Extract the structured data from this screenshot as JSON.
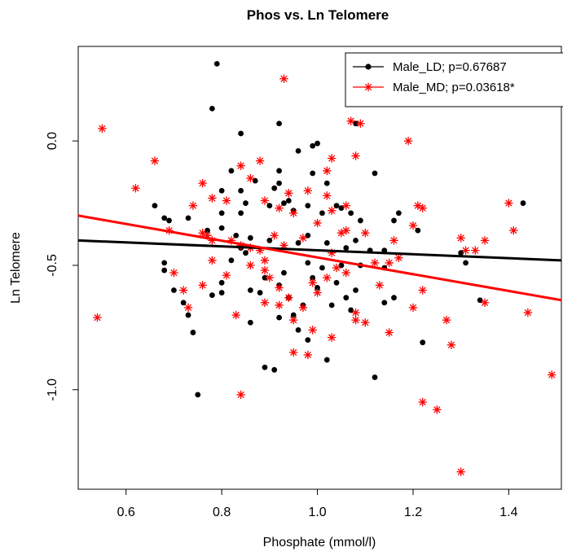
{
  "chart_data": {
    "type": "scatter",
    "title": "Phos vs. Ln Telomere",
    "xlabel": "Phosphate (mmol/l)",
    "ylabel": "Ln Telomere",
    "xlim": [
      0.5,
      1.51
    ],
    "ylim": [
      -1.4,
      0.38
    ],
    "x_ticks": [
      0.6,
      0.8,
      1.0,
      1.2,
      1.4
    ],
    "x_tick_labels": [
      "0.6",
      "0.8",
      "1.0",
      "1.2",
      "1.4"
    ],
    "y_ticks": [
      0.0,
      -0.5,
      -1.0
    ],
    "y_tick_labels": [
      "0.0",
      "-0.5",
      "-1.0"
    ],
    "legend_position": "top-right",
    "series": [
      {
        "name": "Male_LD; p=0.67687",
        "color": "#000000",
        "marker": "dot",
        "regression": {
          "x": [
            0.5,
            1.51
          ],
          "y": [
            -0.4,
            -0.48
          ]
        },
        "points": [
          [
            0.79,
            0.31
          ],
          [
            0.78,
            0.13
          ],
          [
            0.84,
            0.03
          ],
          [
            0.92,
            0.07
          ],
          [
            1.08,
            0.07
          ],
          [
            0.96,
            -0.04
          ],
          [
            0.99,
            -0.02
          ],
          [
            1.0,
            -0.01
          ],
          [
            0.82,
            -0.12
          ],
          [
            0.92,
            -0.12
          ],
          [
            0.91,
            -0.19
          ],
          [
            0.92,
            -0.17
          ],
          [
            0.87,
            -0.16
          ],
          [
            0.99,
            -0.13
          ],
          [
            1.02,
            -0.17
          ],
          [
            0.66,
            -0.26
          ],
          [
            0.68,
            -0.31
          ],
          [
            0.69,
            -0.32
          ],
          [
            0.73,
            -0.31
          ],
          [
            0.8,
            -0.29
          ],
          [
            0.8,
            -0.2
          ],
          [
            0.84,
            -0.2
          ],
          [
            0.85,
            -0.25
          ],
          [
            0.84,
            -0.29
          ],
          [
            0.9,
            -0.26
          ],
          [
            0.93,
            -0.25
          ],
          [
            0.94,
            -0.24
          ],
          [
            0.95,
            -0.28
          ],
          [
            0.98,
            -0.26
          ],
          [
            1.01,
            -0.29
          ],
          [
            1.04,
            -0.26
          ],
          [
            1.05,
            -0.27
          ],
          [
            1.07,
            -0.29
          ],
          [
            1.09,
            -0.32
          ],
          [
            1.16,
            -0.32
          ],
          [
            1.17,
            -0.29
          ],
          [
            1.21,
            -0.36
          ],
          [
            1.43,
            -0.25
          ],
          [
            0.77,
            -0.36
          ],
          [
            0.8,
            -0.35
          ],
          [
            0.83,
            -0.38
          ],
          [
            0.86,
            -0.39
          ],
          [
            0.9,
            -0.4
          ],
          [
            0.96,
            -0.41
          ],
          [
            0.98,
            -0.38
          ],
          [
            1.02,
            -0.41
          ],
          [
            1.06,
            -0.43
          ],
          [
            1.08,
            -0.4
          ],
          [
            1.11,
            -0.44
          ],
          [
            1.14,
            -0.44
          ],
          [
            0.68,
            -0.49
          ],
          [
            0.68,
            -0.52
          ],
          [
            0.7,
            -0.6
          ],
          [
            0.72,
            -0.65
          ],
          [
            0.73,
            -0.7
          ],
          [
            0.74,
            -0.77
          ],
          [
            0.75,
            -1.02
          ],
          [
            0.78,
            -0.62
          ],
          [
            0.8,
            -0.61
          ],
          [
            0.8,
            -0.57
          ],
          [
            0.82,
            -0.48
          ],
          [
            0.84,
            -0.43
          ],
          [
            0.85,
            -0.45
          ],
          [
            0.86,
            -0.6
          ],
          [
            0.86,
            -0.73
          ],
          [
            0.88,
            -0.61
          ],
          [
            0.89,
            -0.55
          ],
          [
            0.89,
            -0.91
          ],
          [
            0.91,
            -0.92
          ],
          [
            0.92,
            -0.58
          ],
          [
            0.92,
            -0.71
          ],
          [
            0.93,
            -0.53
          ],
          [
            0.94,
            -0.63
          ],
          [
            0.95,
            -0.7
          ],
          [
            0.96,
            -0.76
          ],
          [
            0.97,
            -0.66
          ],
          [
            0.98,
            -0.8
          ],
          [
            0.98,
            -0.49
          ],
          [
            0.99,
            -0.55
          ],
          [
            1.0,
            -0.59
          ],
          [
            1.01,
            -0.51
          ],
          [
            1.02,
            -0.88
          ],
          [
            1.03,
            -0.66
          ],
          [
            1.04,
            -0.57
          ],
          [
            1.05,
            -0.5
          ],
          [
            1.06,
            -0.63
          ],
          [
            1.07,
            -0.68
          ],
          [
            1.08,
            -0.6
          ],
          [
            1.09,
            -0.5
          ],
          [
            1.12,
            -0.95
          ],
          [
            1.12,
            -0.13
          ],
          [
            1.14,
            -0.51
          ],
          [
            1.14,
            -0.65
          ],
          [
            1.16,
            -0.63
          ],
          [
            1.22,
            -0.81
          ],
          [
            1.3,
            -0.45
          ],
          [
            1.31,
            -0.49
          ],
          [
            1.34,
            -0.64
          ]
        ]
      },
      {
        "name": "Male_MD; p=0.03618*",
        "color": "#ff0000",
        "marker": "asterisk",
        "regression": {
          "x": [
            0.5,
            1.51
          ],
          "y": [
            -0.3,
            -0.64
          ]
        },
        "points": [
          [
            0.93,
            0.25
          ],
          [
            0.55,
            0.05
          ],
          [
            1.07,
            0.08
          ],
          [
            1.09,
            0.07
          ],
          [
            1.19,
            0.0
          ],
          [
            0.66,
            -0.08
          ],
          [
            0.88,
            -0.08
          ],
          [
            1.03,
            -0.07
          ],
          [
            1.08,
            -0.06
          ],
          [
            0.84,
            -0.1
          ],
          [
            1.02,
            -0.12
          ],
          [
            0.62,
            -0.19
          ],
          [
            0.76,
            -0.17
          ],
          [
            0.86,
            -0.15
          ],
          [
            0.94,
            -0.21
          ],
          [
            0.98,
            -0.2
          ],
          [
            1.02,
            -0.22
          ],
          [
            0.74,
            -0.26
          ],
          [
            0.78,
            -0.23
          ],
          [
            0.81,
            -0.24
          ],
          [
            0.89,
            -0.24
          ],
          [
            0.92,
            -0.27
          ],
          [
            0.95,
            -0.29
          ],
          [
            1.0,
            -0.33
          ],
          [
            1.03,
            -0.28
          ],
          [
            1.06,
            -0.26
          ],
          [
            1.21,
            -0.26
          ],
          [
            1.22,
            -0.27
          ],
          [
            1.4,
            -0.25
          ],
          [
            0.69,
            -0.36
          ],
          [
            0.76,
            -0.37
          ],
          [
            0.77,
            -0.38
          ],
          [
            0.78,
            -0.4
          ],
          [
            0.82,
            -0.4
          ],
          [
            0.84,
            -0.42
          ],
          [
            0.86,
            -0.43
          ],
          [
            0.88,
            -0.44
          ],
          [
            0.91,
            -0.38
          ],
          [
            0.93,
            -0.42
          ],
          [
            0.97,
            -0.39
          ],
          [
            1.03,
            -0.45
          ],
          [
            1.05,
            -0.37
          ],
          [
            1.06,
            -0.36
          ],
          [
            1.1,
            -0.37
          ],
          [
            1.16,
            -0.4
          ],
          [
            1.2,
            -0.34
          ],
          [
            1.3,
            -0.39
          ],
          [
            1.35,
            -0.4
          ],
          [
            1.41,
            -0.36
          ],
          [
            0.7,
            -0.53
          ],
          [
            0.72,
            -0.6
          ],
          [
            0.73,
            -0.67
          ],
          [
            0.76,
            -0.58
          ],
          [
            0.78,
            -0.48
          ],
          [
            0.81,
            -0.54
          ],
          [
            0.86,
            -0.5
          ],
          [
            0.89,
            -0.48
          ],
          [
            0.89,
            -0.52
          ],
          [
            0.9,
            -0.55
          ],
          [
            0.92,
            -0.59
          ],
          [
            0.92,
            -0.66
          ],
          [
            0.94,
            -0.63
          ],
          [
            0.95,
            -0.72
          ],
          [
            0.97,
            -0.67
          ],
          [
            0.99,
            -0.57
          ],
          [
            1.0,
            -0.61
          ],
          [
            1.02,
            -0.55
          ],
          [
            1.04,
            -0.51
          ],
          [
            1.06,
            -0.53
          ],
          [
            1.08,
            -0.69
          ],
          [
            1.1,
            -0.73
          ],
          [
            1.12,
            -0.49
          ],
          [
            1.13,
            -0.58
          ],
          [
            1.15,
            -0.49
          ],
          [
            1.17,
            -0.47
          ],
          [
            1.2,
            -0.67
          ],
          [
            1.22,
            -0.6
          ],
          [
            1.27,
            -0.72
          ],
          [
            1.31,
            -0.44
          ],
          [
            1.33,
            -0.44
          ],
          [
            1.35,
            -0.65
          ],
          [
            1.44,
            -0.69
          ],
          [
            0.54,
            -0.71
          ],
          [
            0.83,
            -0.7
          ],
          [
            0.84,
            -1.02
          ],
          [
            0.89,
            -0.65
          ],
          [
            0.95,
            -0.85
          ],
          [
            0.98,
            -0.86
          ],
          [
            0.99,
            -0.76
          ],
          [
            1.03,
            -0.79
          ],
          [
            1.08,
            -0.72
          ],
          [
            1.15,
            -0.77
          ],
          [
            1.22,
            -1.05
          ],
          [
            1.25,
            -1.08
          ],
          [
            1.28,
            -0.82
          ],
          [
            1.3,
            -1.33
          ],
          [
            1.49,
            -0.94
          ]
        ]
      }
    ]
  }
}
